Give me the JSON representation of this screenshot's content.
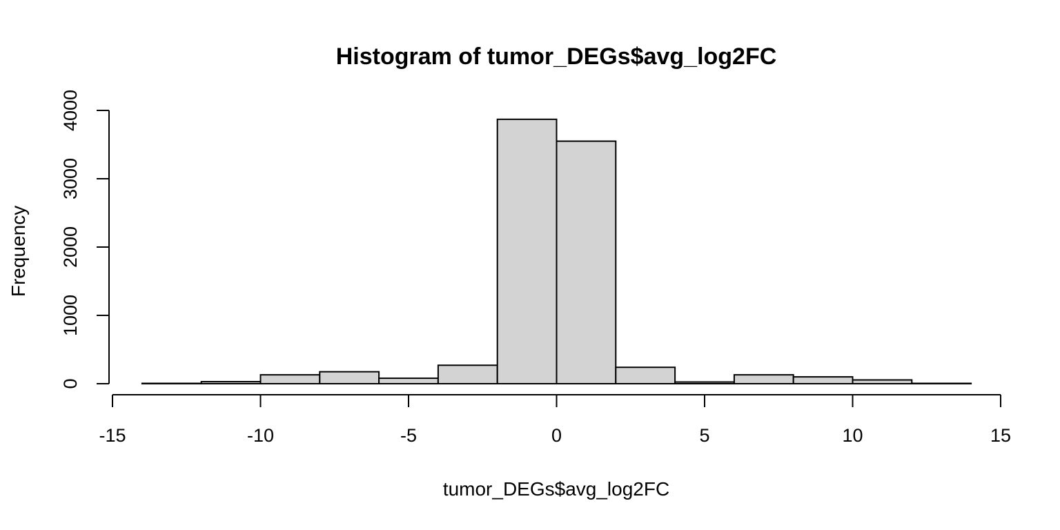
{
  "chart_data": {
    "type": "bar",
    "title": "Histogram of tumor_DEGs$avg_log2FC",
    "xlabel": "tumor_DEGs$avg_log2FC",
    "ylabel": "Frequency",
    "bin_edges": [
      -14,
      -12,
      -10,
      -8,
      -6,
      -4,
      -2,
      0,
      2,
      4,
      6,
      8,
      10,
      12,
      14
    ],
    "values": [
      5,
      30,
      130,
      175,
      80,
      270,
      3870,
      3550,
      240,
      25,
      130,
      100,
      55,
      5
    ],
    "xlim": [
      -15,
      15
    ],
    "ylim": [
      0,
      4000
    ],
    "x_ticks": [
      -15,
      -10,
      -5,
      0,
      5,
      10,
      15
    ],
    "x_tick_labels": [
      "-15",
      "-10",
      "-5",
      "0",
      "5",
      "10",
      "15"
    ],
    "y_ticks": [
      0,
      1000,
      2000,
      3000,
      4000
    ],
    "y_tick_labels": [
      "0",
      "1000",
      "2000",
      "3000",
      "4000"
    ],
    "bar_color": "#d3d3d3",
    "grid": false
  }
}
